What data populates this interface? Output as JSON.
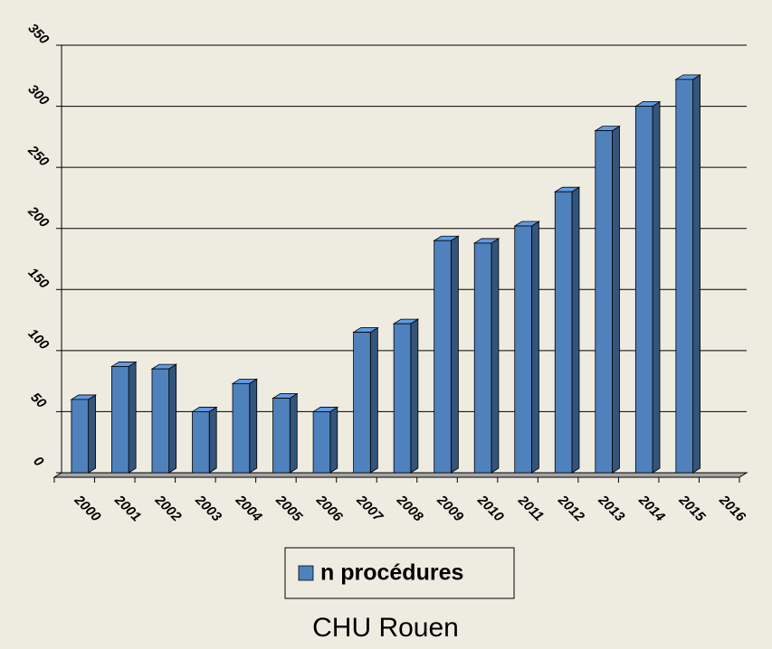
{
  "chart_data": {
    "type": "bar3d",
    "title": "CHU Rouen",
    "categories": [
      "2000",
      "2001",
      "2002",
      "2003",
      "2004",
      "2005",
      "2006",
      "2007",
      "2008",
      "2009",
      "2010",
      "2011",
      "2012",
      "2013",
      "2014",
      "2015",
      "2016"
    ],
    "series": [
      {
        "name": "n procédures",
        "color": "#4f81bd",
        "values": [
          60,
          87,
          85,
          50,
          73,
          61,
          50,
          115,
          122,
          190,
          188,
          202,
          230,
          280,
          300,
          322,
          null
        ]
      }
    ],
    "ylim": [
      0,
      350
    ],
    "yticks": [
      0,
      50,
      100,
      150,
      200,
      250,
      300,
      350
    ],
    "grid": true,
    "legend": "bottom"
  }
}
